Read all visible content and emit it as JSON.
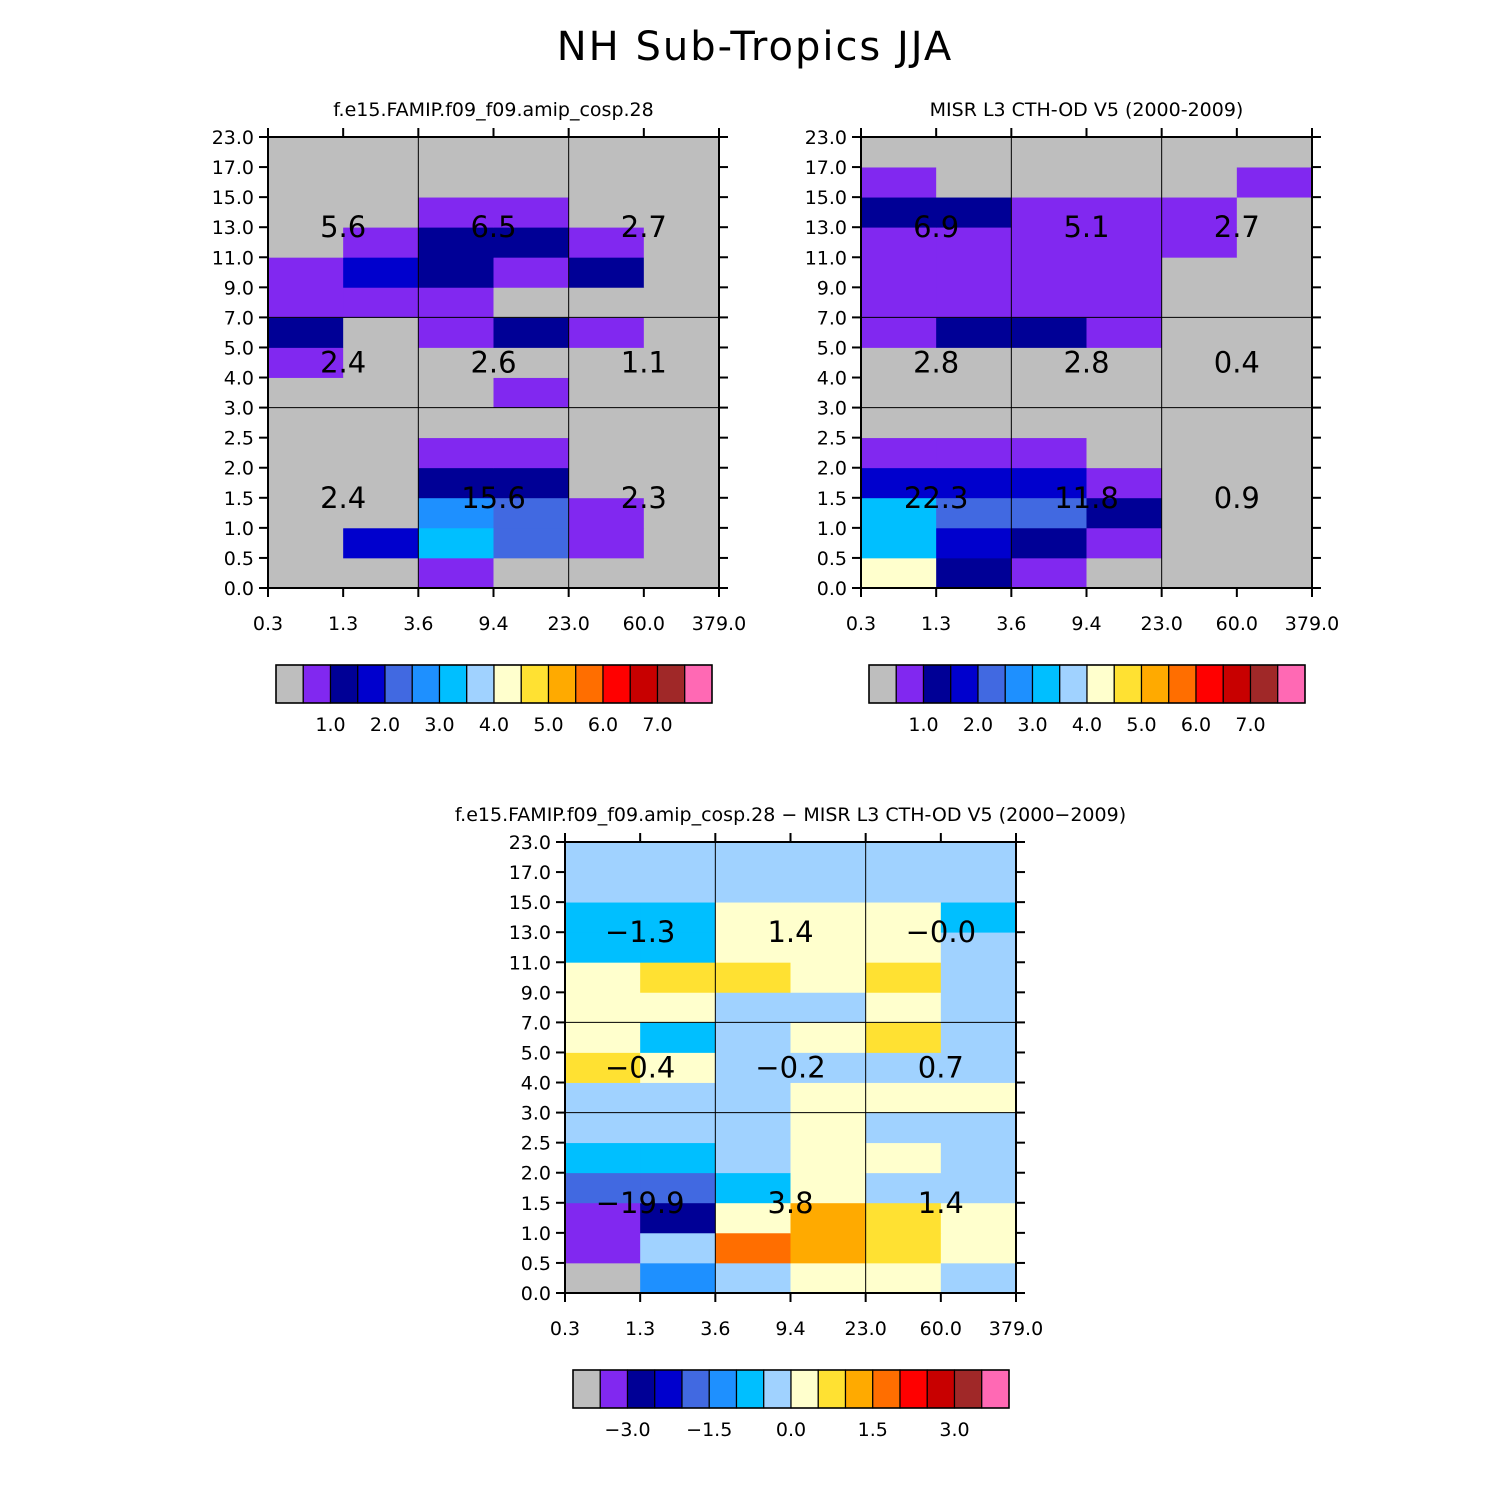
{
  "title": "NH Sub-Tropics JJA",
  "colors": {
    "palette": [
      "#bebebe",
      "#8128f0",
      "#000096",
      "#0000cd",
      "#4169e1",
      "#1e90ff",
      "#00bfff",
      "#a0d2ff",
      "#ffffcd",
      "#ffe132",
      "#ffaa00",
      "#ff6e00",
      "#ff0000",
      "#c80000",
      "#a02828",
      "#ff69b4"
    ],
    "background": "#bebebe"
  },
  "chart_data": [
    {
      "type": "heatmap",
      "title": "f.e15.FAMIP.f09_f09.amip_cosp.28",
      "x_ticks": [
        "0.3",
        "1.3",
        "3.6",
        "9.4",
        "23.0",
        "60.0",
        "379.0"
      ],
      "y_ticks": [
        "0.0",
        "0.5",
        "1.0",
        "1.5",
        "2.0",
        "2.5",
        "3.0",
        "4.0",
        "5.0",
        "7.0",
        "9.0",
        "11.0",
        "13.0",
        "15.0",
        "17.0",
        "23.0"
      ],
      "cells": [
        [
          0,
          0,
          1,
          0,
          0,
          0
        ],
        [
          0,
          3,
          6,
          4,
          1,
          0
        ],
        [
          0,
          0,
          5,
          4,
          1,
          0
        ],
        [
          0,
          0,
          2,
          2,
          0,
          0
        ],
        [
          0,
          0,
          1,
          1,
          0,
          0
        ],
        [
          0,
          0,
          0,
          0,
          0,
          0
        ],
        [
          0,
          0,
          0,
          1,
          0,
          0
        ],
        [
          1,
          0,
          0,
          0,
          0,
          0
        ],
        [
          2,
          0,
          1,
          2,
          1,
          0
        ],
        [
          1,
          1,
          1,
          0,
          0,
          0
        ],
        [
          1,
          3,
          2,
          1,
          2,
          0
        ],
        [
          0,
          1,
          2,
          2,
          1,
          0
        ],
        [
          0,
          0,
          1,
          1,
          0,
          0
        ],
        [
          0,
          0,
          0,
          0,
          0,
          0
        ],
        [
          0,
          0,
          0,
          0,
          0,
          0
        ]
      ],
      "group_labels": [
        [
          "2.4",
          "15.6",
          "2.3"
        ],
        [
          "2.4",
          "2.6",
          "1.1"
        ],
        [
          "5.6",
          "6.5",
          "2.7"
        ]
      ],
      "colorbar_labels": [
        "1.0",
        "2.0",
        "3.0",
        "4.0",
        "5.0",
        "6.0",
        "7.0"
      ]
    },
    {
      "type": "heatmap",
      "title": "MISR L3 CTH-OD V5 (2000-2009)",
      "x_ticks": [
        "0.3",
        "1.3",
        "3.6",
        "9.4",
        "23.0",
        "60.0",
        "379.0"
      ],
      "y_ticks": [
        "0.0",
        "0.5",
        "1.0",
        "1.5",
        "2.0",
        "2.5",
        "3.0",
        "4.0",
        "5.0",
        "7.0",
        "9.0",
        "11.0",
        "13.0",
        "15.0",
        "17.0",
        "23.0"
      ],
      "cells": [
        [
          8,
          2,
          1,
          0,
          0,
          0
        ],
        [
          6,
          3,
          2,
          1,
          0,
          0
        ],
        [
          6,
          4,
          4,
          2,
          0,
          0
        ],
        [
          3,
          3,
          3,
          1,
          0,
          0
        ],
        [
          1,
          1,
          1,
          0,
          0,
          0
        ],
        [
          0,
          0,
          0,
          0,
          0,
          0
        ],
        [
          0,
          0,
          0,
          0,
          0,
          0
        ],
        [
          0,
          0,
          0,
          0,
          0,
          0
        ],
        [
          1,
          2,
          2,
          1,
          0,
          0
        ],
        [
          1,
          1,
          1,
          1,
          0,
          0
        ],
        [
          1,
          1,
          1,
          1,
          0,
          0
        ],
        [
          1,
          1,
          1,
          1,
          1,
          0
        ],
        [
          2,
          2,
          1,
          1,
          1,
          0
        ],
        [
          1,
          0,
          0,
          0,
          0,
          1
        ],
        [
          0,
          0,
          0,
          0,
          0,
          0
        ]
      ],
      "group_labels": [
        [
          "22.3",
          "11.8",
          "0.9"
        ],
        [
          "2.8",
          "2.8",
          "0.4"
        ],
        [
          "6.9",
          "5.1",
          "2.7"
        ]
      ],
      "colorbar_labels": [
        "1.0",
        "2.0",
        "3.0",
        "4.0",
        "5.0",
        "6.0",
        "7.0"
      ]
    },
    {
      "type": "heatmap",
      "title": "f.e15.FAMIP.f09_f09.amip_cosp.28 − MISR L3 CTH-OD V5 (2000−2009)",
      "x_ticks": [
        "0.3",
        "1.3",
        "3.6",
        "9.4",
        "23.0",
        "60.0",
        "379.0"
      ],
      "y_ticks": [
        "0.0",
        "0.5",
        "1.0",
        "1.5",
        "2.0",
        "2.5",
        "3.0",
        "4.0",
        "5.0",
        "7.0",
        "9.0",
        "11.0",
        "13.0",
        "15.0",
        "17.0",
        "23.0"
      ],
      "cells": [
        [
          0,
          5,
          7,
          8,
          8,
          7
        ],
        [
          1,
          7,
          11,
          10,
          9,
          8
        ],
        [
          1,
          2,
          8,
          10,
          9,
          8
        ],
        [
          4,
          4,
          6,
          8,
          7,
          7
        ],
        [
          6,
          6,
          7,
          8,
          8,
          7
        ],
        [
          7,
          7,
          7,
          8,
          7,
          7
        ],
        [
          7,
          7,
          7,
          8,
          8,
          8
        ],
        [
          9,
          8,
          7,
          7,
          7,
          7
        ],
        [
          8,
          6,
          7,
          8,
          9,
          7
        ],
        [
          8,
          8,
          7,
          7,
          8,
          7
        ],
        [
          8,
          9,
          9,
          8,
          9,
          7
        ],
        [
          6,
          6,
          8,
          8,
          8,
          7
        ],
        [
          6,
          6,
          8,
          8,
          8,
          6
        ],
        [
          7,
          7,
          7,
          7,
          7,
          7
        ],
        [
          7,
          7,
          7,
          7,
          7,
          7
        ]
      ],
      "group_labels": [
        [
          "−19.9",
          "3.8",
          "1.4"
        ],
        [
          "−0.4",
          "−0.2",
          "0.7"
        ],
        [
          "−1.3",
          "1.4",
          "−0.0"
        ]
      ],
      "colorbar_labels": [
        "−3.0",
        "−1.5",
        "0.0",
        "1.5",
        "3.0"
      ]
    }
  ]
}
